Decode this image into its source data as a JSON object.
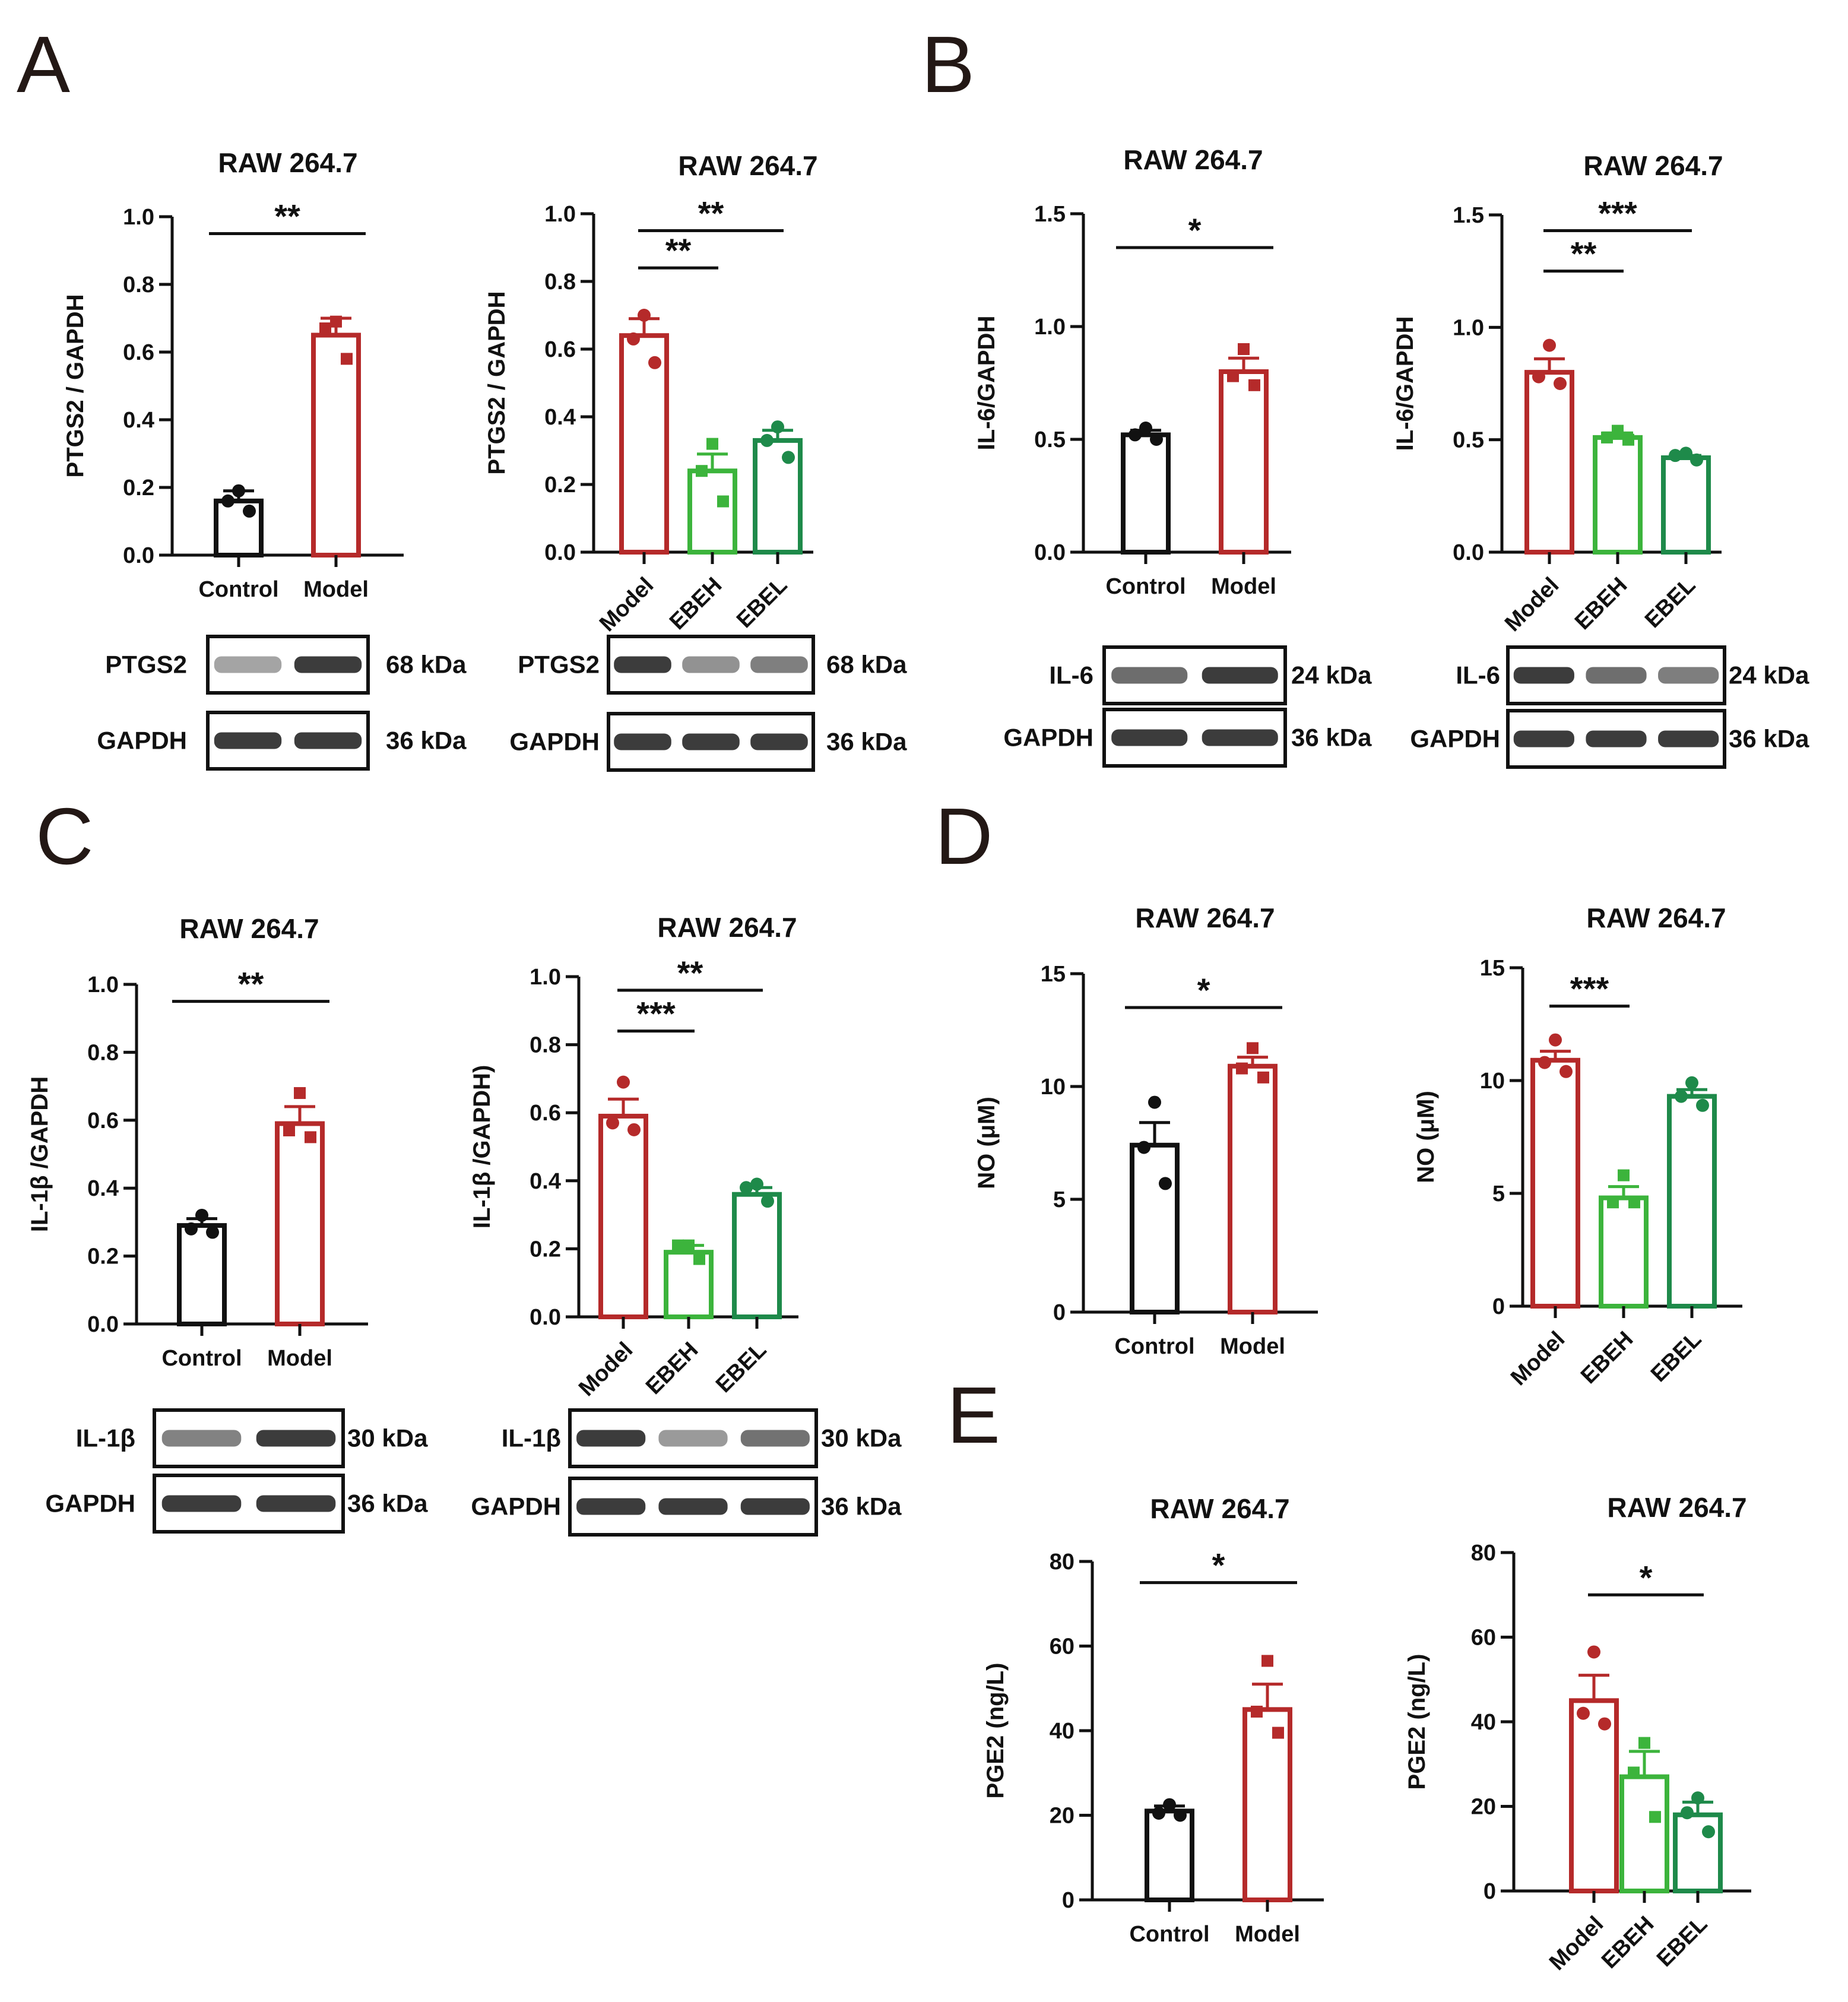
{
  "figure": {
    "panel_letters": [
      "A",
      "B",
      "C",
      "D",
      "E"
    ],
    "colors": {
      "control": "#111111",
      "model": "#B52A2A",
      "ebeh": "#3CB43C",
      "ebel": "#1E8A4A",
      "axis": "#111111"
    }
  },
  "chart_data": [
    {
      "id": "A1",
      "type": "bar",
      "title": "RAW 264.7",
      "ylabel": "PTGS2  / GAPDH",
      "xlabel": "",
      "ylim": [
        0,
        1.0
      ],
      "yticks": [
        0.0,
        0.2,
        0.4,
        0.6,
        0.8,
        1.0
      ],
      "ytick_labels": [
        "0.0",
        "0.2",
        "0.4",
        "0.6",
        "0.8",
        "1.0"
      ],
      "categories": [
        "Control",
        "Model"
      ],
      "values": [
        0.16,
        0.65
      ],
      "sem": [
        0.03,
        0.05
      ],
      "points": [
        [
          0.19,
          0.16,
          0.13
        ],
        [
          0.69,
          0.67,
          0.58
        ]
      ],
      "significance": [
        {
          "from": 0,
          "to": 1,
          "label": "**",
          "level": 0.95
        }
      ],
      "blot": {
        "rows": [
          {
            "label": "PTGS2",
            "kda": "68 kDa"
          },
          {
            "label": "GAPDH",
            "kda": "36 kDa"
          }
        ]
      }
    },
    {
      "id": "A2",
      "type": "bar",
      "title": "RAW 264.7",
      "ylabel": "PTGS2 / GAPDH",
      "xlabel": "",
      "ylim": [
        0,
        1.0
      ],
      "yticks": [
        0.0,
        0.2,
        0.4,
        0.6,
        0.8,
        1.0
      ],
      "ytick_labels": [
        "0.0",
        "0.2",
        "0.4",
        "0.6",
        "0.8",
        "1.0"
      ],
      "categories": [
        "Model",
        "EBEH",
        "EBEL"
      ],
      "values": [
        0.64,
        0.24,
        0.33
      ],
      "sem": [
        0.05,
        0.05,
        0.03
      ],
      "points": [
        [
          0.7,
          0.63,
          0.56
        ],
        [
          0.32,
          0.24,
          0.15
        ],
        [
          0.37,
          0.33,
          0.28
        ]
      ],
      "significance": [
        {
          "from": 0,
          "to": 1,
          "label": "**",
          "level": 0.84
        },
        {
          "from": 0,
          "to": 2,
          "label": "**",
          "level": 0.95
        }
      ],
      "blot": {
        "rows": [
          {
            "label": "PTGS2",
            "kda": "68 kDa"
          },
          {
            "label": "GAPDH",
            "kda": "36 kDa"
          }
        ]
      }
    },
    {
      "id": "B1",
      "type": "bar",
      "title": "RAW 264.7",
      "ylabel": "IL-6/GAPDH",
      "xlabel": "",
      "ylim": [
        0,
        1.5
      ],
      "yticks": [
        0.0,
        0.5,
        1.0,
        1.5
      ],
      "ytick_labels": [
        "0.0",
        "0.5",
        "1.0",
        "1.5"
      ],
      "categories": [
        "Control",
        "Model"
      ],
      "values": [
        0.52,
        0.8
      ],
      "sem": [
        0.02,
        0.06
      ],
      "points": [
        [
          0.55,
          0.52,
          0.5
        ],
        [
          0.9,
          0.78,
          0.74
        ]
      ],
      "significance": [
        {
          "from": 0,
          "to": 1,
          "label": "*",
          "level": 1.35
        }
      ],
      "blot": {
        "rows": [
          {
            "label": "IL-6",
            "kda": "24 kDa"
          },
          {
            "label": "GAPDH",
            "kda": "36 kDa"
          }
        ]
      }
    },
    {
      "id": "B2",
      "type": "bar",
      "title": "RAW 264.7",
      "ylabel": "IL-6/GAPDH",
      "xlabel": "",
      "ylim": [
        0,
        1.5
      ],
      "yticks": [
        0.0,
        0.5,
        1.0,
        1.5
      ],
      "ytick_labels": [
        "0.0",
        "0.5",
        "1.0",
        "1.5"
      ],
      "categories": [
        "Model",
        "EBEH",
        "EBEL"
      ],
      "values": [
        0.8,
        0.51,
        0.42
      ],
      "sem": [
        0.06,
        0.02,
        0.01
      ],
      "points": [
        [
          0.92,
          0.78,
          0.75
        ],
        [
          0.54,
          0.51,
          0.5
        ],
        [
          0.44,
          0.43,
          0.41
        ]
      ],
      "significance": [
        {
          "from": 0,
          "to": 1,
          "label": "**",
          "level": 1.25
        },
        {
          "from": 0,
          "to": 2,
          "label": "***",
          "level": 1.43
        }
      ],
      "blot": {
        "rows": [
          {
            "label": "IL-6",
            "kda": "24 kDa"
          },
          {
            "label": "GAPDH",
            "kda": "36 kDa"
          }
        ]
      }
    },
    {
      "id": "C1",
      "type": "bar",
      "title": "RAW 264.7",
      "ylabel": "IL-1β /GAPDH",
      "xlabel": "",
      "ylim": [
        0,
        1.0
      ],
      "yticks": [
        0.0,
        0.2,
        0.4,
        0.6,
        0.8,
        1.0
      ],
      "ytick_labels": [
        "0.0",
        "0.2",
        "0.4",
        "0.6",
        "0.8",
        "1.0"
      ],
      "categories": [
        "Control",
        "Model"
      ],
      "values": [
        0.29,
        0.59
      ],
      "sem": [
        0.02,
        0.05
      ],
      "points": [
        [
          0.32,
          0.28,
          0.27
        ],
        [
          0.68,
          0.57,
          0.55
        ]
      ],
      "significance": [
        {
          "from": 0,
          "to": 1,
          "label": "**",
          "level": 0.95
        }
      ],
      "blot": {
        "rows": [
          {
            "label": "IL-1β",
            "kda": "30 kDa"
          },
          {
            "label": "GAPDH",
            "kda": "36 kDa"
          }
        ]
      }
    },
    {
      "id": "C2",
      "type": "bar",
      "title": "RAW 264.7",
      "ylabel": "IL-1β /GAPDH)",
      "xlabel": "",
      "ylim": [
        0,
        1.0
      ],
      "yticks": [
        0.0,
        0.2,
        0.4,
        0.6,
        0.8,
        1.0
      ],
      "ytick_labels": [
        "0.0",
        "0.2",
        "0.4",
        "0.6",
        "0.8",
        "1.0"
      ],
      "categories": [
        "Model",
        "EBEH",
        "EBEL"
      ],
      "values": [
        0.59,
        0.19,
        0.36
      ],
      "sem": [
        0.05,
        0.02,
        0.02
      ],
      "points": [
        [
          0.69,
          0.57,
          0.55
        ],
        [
          0.21,
          0.21,
          0.17
        ],
        [
          0.39,
          0.38,
          0.34
        ]
      ],
      "significance": [
        {
          "from": 0,
          "to": 1,
          "label": "***",
          "level": 0.84
        },
        {
          "from": 0,
          "to": 2,
          "label": "**",
          "level": 0.96
        }
      ],
      "blot": {
        "rows": [
          {
            "label": "IL-1β",
            "kda": "30 kDa"
          },
          {
            "label": "GAPDH",
            "kda": "36 kDa"
          }
        ]
      }
    },
    {
      "id": "D1",
      "type": "bar",
      "title": "RAW 264.7",
      "ylabel": "NO (μM)",
      "xlabel": "",
      "ylim": [
        0,
        15
      ],
      "yticks": [
        0,
        5,
        10,
        15
      ],
      "ytick_labels": [
        "0",
        "5",
        "10",
        "15"
      ],
      "categories": [
        "Control",
        "Model"
      ],
      "values": [
        7.4,
        10.9
      ],
      "sem": [
        1.0,
        0.4
      ],
      "points": [
        [
          9.3,
          7.3,
          5.7
        ],
        [
          11.7,
          10.8,
          10.4
        ]
      ],
      "significance": [
        {
          "from": 0,
          "to": 1,
          "label": "*",
          "level": 13.5
        }
      ],
      "blot": null
    },
    {
      "id": "D2",
      "type": "bar",
      "title": "RAW 264.7",
      "ylabel": "NO (μM)",
      "xlabel": "",
      "ylim": [
        0,
        15
      ],
      "yticks": [
        0,
        5,
        10,
        15
      ],
      "ytick_labels": [
        "0",
        "5",
        "10",
        "15"
      ],
      "categories": [
        "Model",
        "EBEH",
        "EBEL"
      ],
      "values": [
        10.9,
        4.8,
        9.3
      ],
      "sem": [
        0.4,
        0.5,
        0.3
      ],
      "points": [
        [
          11.8,
          10.8,
          10.4
        ],
        [
          5.8,
          4.6,
          4.6
        ],
        [
          9.9,
          9.3,
          8.9
        ]
      ],
      "significance": [
        {
          "from": 0,
          "to": 1,
          "label": "***",
          "level": 13.3
        }
      ],
      "blot": null
    },
    {
      "id": "E1",
      "type": "bar",
      "title": "RAW 264.7",
      "ylabel": "PGE2 (ng/L)",
      "xlabel": "",
      "ylim": [
        0,
        80
      ],
      "yticks": [
        0,
        20,
        40,
        60,
        80
      ],
      "ytick_labels": [
        "0",
        "20",
        "40",
        "60",
        "80"
      ],
      "categories": [
        "Control",
        "Model"
      ],
      "values": [
        21,
        45
      ],
      "sem": [
        1.2,
        6
      ],
      "points": [
        [
          22.5,
          20.5,
          20
        ],
        [
          56.5,
          44.5,
          39.5
        ]
      ],
      "significance": [
        {
          "from": 0,
          "to": 1,
          "label": "*",
          "level": 75
        }
      ],
      "blot": null
    },
    {
      "id": "E2",
      "type": "bar",
      "title": "RAW 264.7",
      "ylabel": "PGE2 (ng/L)",
      "xlabel": "",
      "ylim": [
        0,
        80
      ],
      "yticks": [
        0,
        20,
        40,
        60,
        80
      ],
      "ytick_labels": [
        "0",
        "20",
        "40",
        "60",
        "80"
      ],
      "categories": [
        "Model",
        "EBEH",
        "EBEL"
      ],
      "values": [
        45,
        27,
        18
      ],
      "sem": [
        6,
        6,
        3
      ],
      "points": [
        [
          56.5,
          42,
          39.5
        ],
        [
          35,
          28,
          17.5
        ],
        [
          22,
          18.5,
          14
        ]
      ],
      "significance": [
        {
          "from": 0,
          "to": 2,
          "label": "*",
          "level": 70
        }
      ],
      "blot": null
    }
  ]
}
